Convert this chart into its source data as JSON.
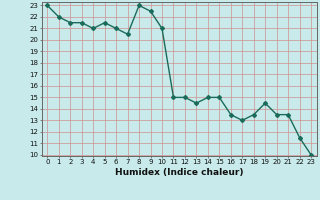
{
  "xlabel": "Humidex (Indice chaleur)",
  "data_x": [
    0,
    1,
    2,
    3,
    4,
    5,
    6,
    7,
    8,
    9,
    10,
    11,
    12,
    13,
    14,
    15,
    16,
    17,
    18,
    19,
    20,
    21,
    22,
    23
  ],
  "data_y": [
    23,
    22,
    21.5,
    21.5,
    21,
    21.5,
    21,
    20.5,
    23,
    22.5,
    21,
    15,
    15,
    14.5,
    15,
    15,
    13.5,
    13,
    13.5,
    14.5,
    13.5,
    13.5,
    11.5,
    10
  ],
  "ylim": [
    10,
    23
  ],
  "xlim": [
    -0.5,
    23.5
  ],
  "line_color": "#1a6b5a",
  "bg_color": "#c8eaea",
  "grid_color": "#d09090",
  "marker": "D",
  "markersize": 2.0,
  "linewidth": 1.0,
  "yticks": [
    10,
    11,
    12,
    13,
    14,
    15,
    16,
    17,
    18,
    19,
    20,
    21,
    22,
    23
  ],
  "xticks": [
    0,
    1,
    2,
    3,
    4,
    5,
    6,
    7,
    8,
    9,
    10,
    11,
    12,
    13,
    14,
    15,
    16,
    17,
    18,
    19,
    20,
    21,
    22,
    23
  ],
  "tick_fontsize": 5.0,
  "xlabel_fontsize": 6.5
}
